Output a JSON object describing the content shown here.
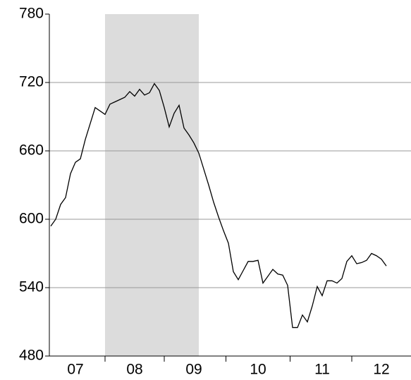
{
  "chart_data": {
    "type": "line",
    "categories": [
      null,
      null,
      null,
      null,
      null,
      "07",
      null,
      null,
      null,
      null,
      null,
      null,
      null,
      null,
      null,
      null,
      null,
      "08",
      null,
      null,
      null,
      null,
      null,
      null,
      null,
      null,
      null,
      null,
      null,
      "09",
      null,
      null,
      null,
      null,
      null,
      null,
      null,
      null,
      null,
      null,
      null,
      null,
      "10",
      null,
      null,
      null,
      null,
      null,
      null,
      null,
      null,
      null,
      null,
      null,
      null,
      "11",
      null,
      null,
      null,
      null,
      null,
      null,
      null,
      null,
      null,
      null,
      null,
      "12",
      null
    ],
    "values": [
      594,
      600,
      613,
      619,
      640,
      650,
      653,
      670,
      684,
      698,
      695,
      692,
      701,
      703,
      705,
      707,
      712,
      708,
      714,
      709,
      711,
      719,
      713,
      698,
      681,
      693,
      700,
      680,
      674,
      667,
      658,
      644,
      630,
      615,
      602,
      590,
      579,
      554,
      547,
      555,
      563,
      563,
      564,
      544,
      550,
      556,
      552,
      551,
      542,
      505,
      505,
      516,
      510,
      524,
      541,
      533,
      546,
      546,
      544,
      548,
      563,
      568,
      561,
      562,
      564,
      570,
      568,
      565,
      559
    ],
    "color": "#000000",
    "shaded": {
      "from": 11,
      "to": 30,
      "color": "#dcdcdc"
    },
    "ylim": [
      480,
      780
    ],
    "yticks": [
      480,
      540,
      600,
      660,
      720,
      780
    ],
    "grid": true
  }
}
